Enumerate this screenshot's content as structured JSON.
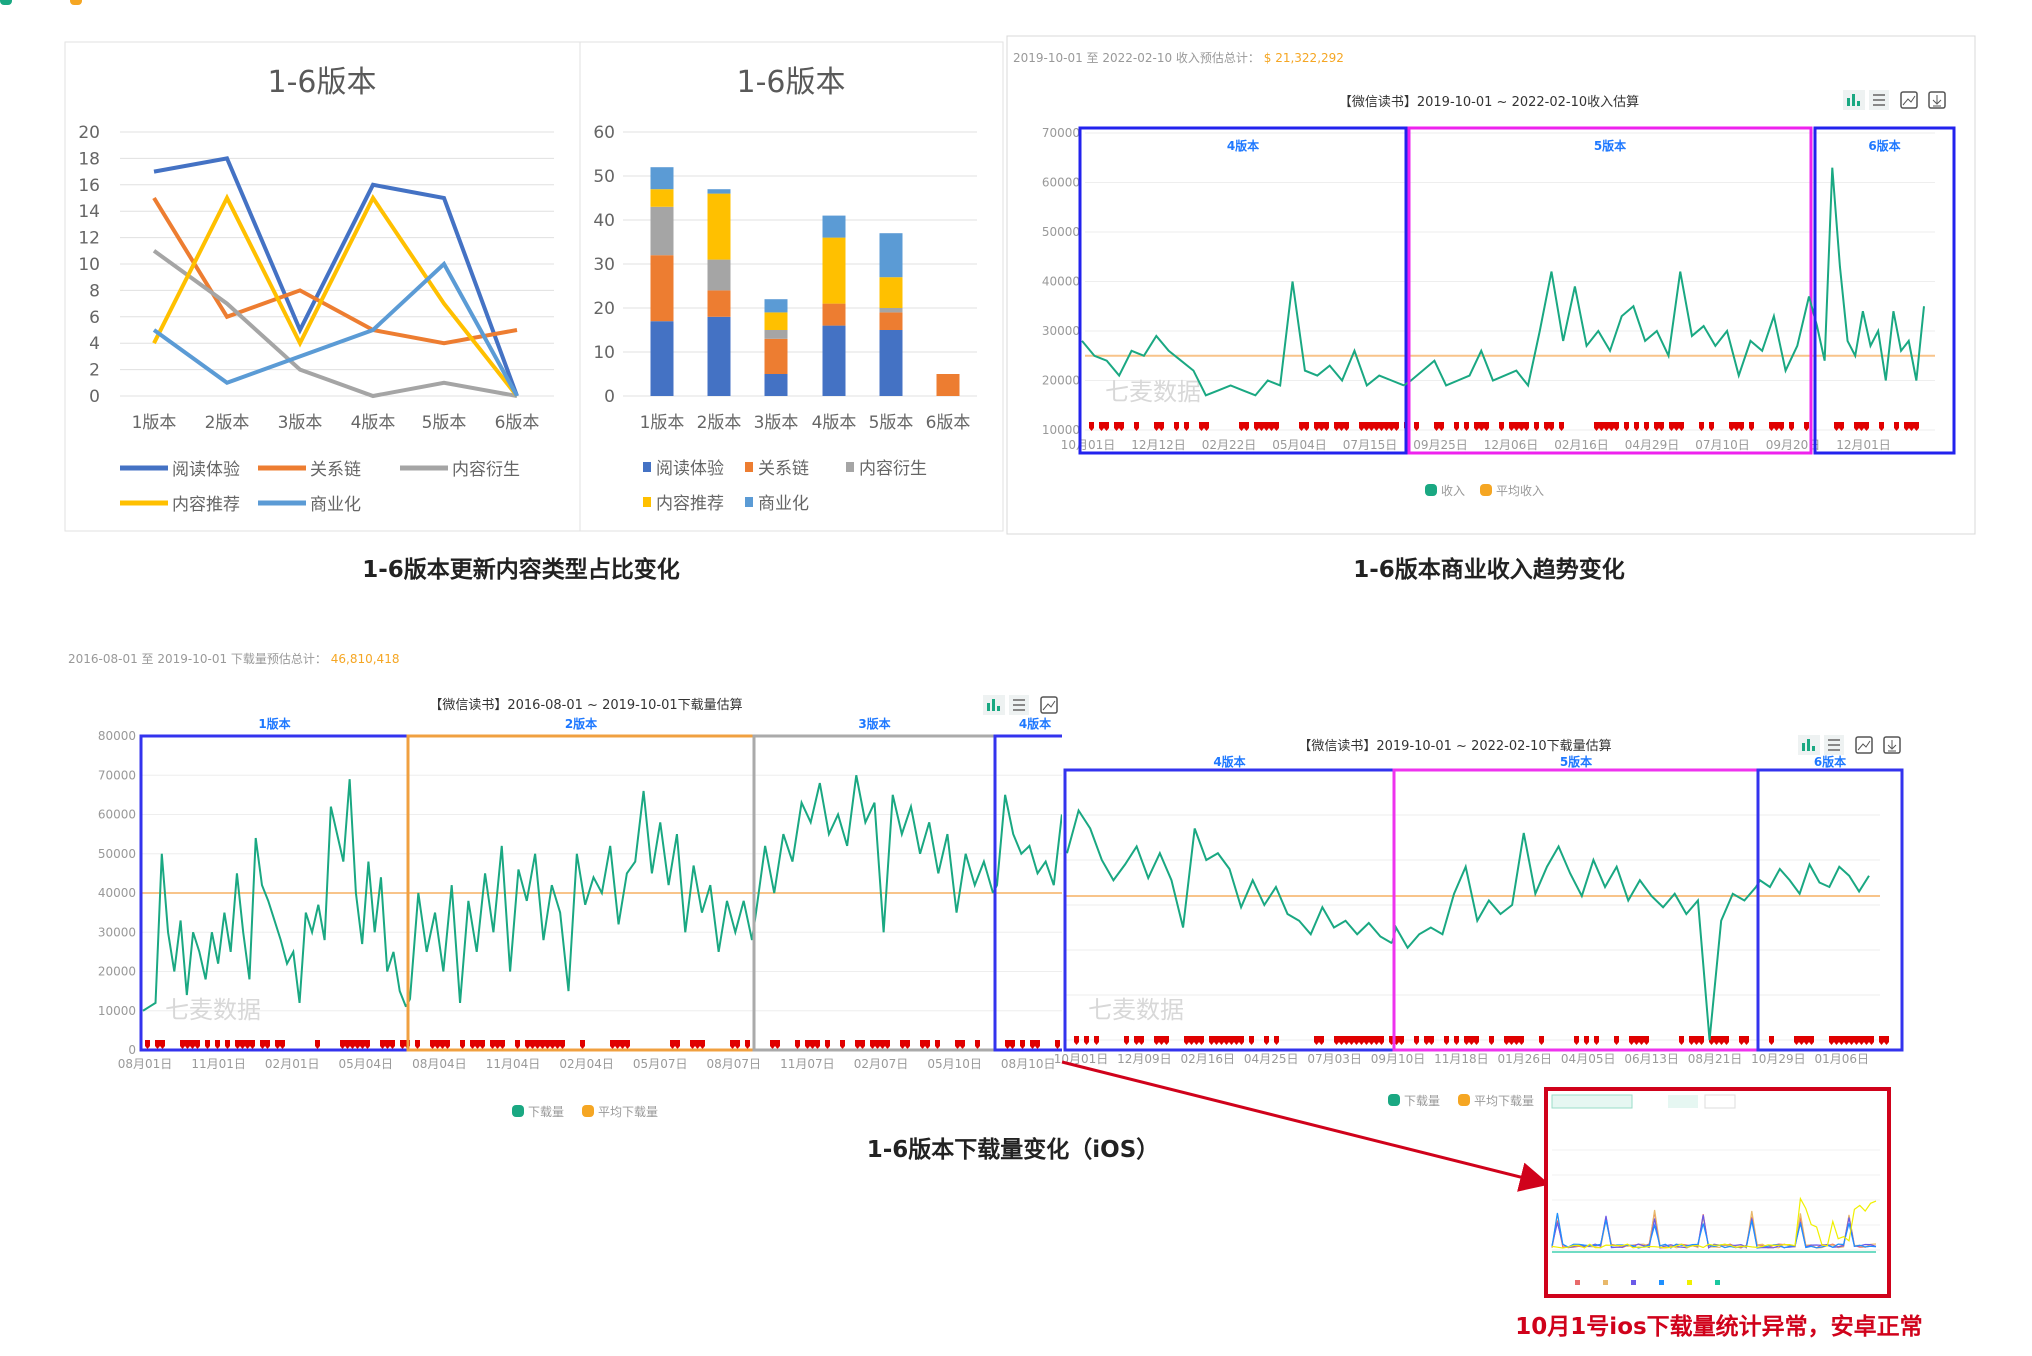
{
  "captions": {
    "content_types": "1-6版本更新内容类型占比变化",
    "revenue": "1-6版本商业收入趋势变化",
    "downloads": "1-6版本下载量变化（iOS）",
    "anomaly_note": "10月1号ios下载量统计异常，安卓正常"
  },
  "watermark": "七麦数据",
  "colors": {
    "line": "#1aa882",
    "average": "#f8c48a",
    "marker": "#e00000",
    "accent_text": "#f5a623",
    "arrow": "#d0021b"
  },
  "revenue_panel": {
    "summary_label": "2019-10-01 至 2022-02-10 收入预估总计：",
    "summary_value": "$ 21,322,292",
    "toolbar_icons": [
      "bar-chart-icon",
      "list-icon",
      "save-image-icon",
      "download-icon"
    ]
  },
  "download_panel_1": {
    "summary_label": "2016-08-01 至 2019-10-01 下载量预估总计：",
    "summary_value": "46,810,418",
    "toolbar_icons": [
      "bar-chart-icon",
      "list-icon",
      "save-image-icon"
    ]
  },
  "download_panel_2": {
    "toolbar_icons": [
      "bar-chart-icon",
      "list-icon",
      "save-image-icon",
      "download-icon"
    ]
  },
  "inset": {
    "series_colors": [
      "#e86a6a",
      "#e8b86a",
      "#6a5ae8",
      "#1e90ff",
      "#f0f000",
      "#1ac8a0"
    ]
  },
  "chart_data": [
    {
      "type": "line",
      "title": "1-6版本",
      "categories": [
        "1版本",
        "2版本",
        "3版本",
        "4版本",
        "5版本",
        "6版本"
      ],
      "ylim": [
        0,
        20
      ],
      "yticks": [
        "0",
        "2",
        "4",
        "6",
        "8",
        "10",
        "12",
        "14",
        "16",
        "18",
        "20"
      ],
      "grid": true,
      "legend": "bottom",
      "series": [
        {
          "name": "阅读体验",
          "color": "#4472c4",
          "values": [
            17,
            18,
            5,
            16,
            15,
            0
          ]
        },
        {
          "name": "关系链",
          "color": "#ed7d31",
          "values": [
            15,
            6,
            8,
            5,
            4,
            5
          ]
        },
        {
          "name": "内容衍生",
          "color": "#a5a5a5",
          "values": [
            11,
            7,
            2,
            0,
            1,
            0
          ]
        },
        {
          "name": "内容推荐",
          "color": "#ffc000",
          "values": [
            4,
            15,
            4,
            15,
            7,
            0
          ]
        },
        {
          "name": "商业化",
          "color": "#5b9bd5",
          "values": [
            5,
            1,
            3,
            5,
            10,
            0
          ]
        }
      ]
    },
    {
      "type": "bar",
      "stacked": true,
      "title": "1-6版本",
      "categories": [
        "1版本",
        "2版本",
        "3版本",
        "4版本",
        "5版本",
        "6版本"
      ],
      "ylim": [
        0,
        60
      ],
      "yticks": [
        "0",
        "10",
        "20",
        "30",
        "40",
        "50",
        "60"
      ],
      "grid": true,
      "legend": "bottom",
      "series": [
        {
          "name": "阅读体验",
          "color": "#4472c4",
          "values": [
            17,
            18,
            5,
            16,
            15,
            0
          ]
        },
        {
          "name": "关系链",
          "color": "#ed7d31",
          "values": [
            15,
            6,
            8,
            5,
            4,
            5
          ]
        },
        {
          "name": "内容衍生",
          "color": "#a5a5a5",
          "values": [
            11,
            7,
            2,
            0,
            1,
            0
          ]
        },
        {
          "name": "内容推荐",
          "color": "#ffc000",
          "values": [
            4,
            15,
            4,
            15,
            7,
            0
          ]
        },
        {
          "name": "商业化",
          "color": "#5b9bd5",
          "values": [
            5,
            1,
            3,
            5,
            10,
            0
          ]
        }
      ]
    },
    {
      "type": "line",
      "title": "【微信读书】2019-10-01 ~ 2022-02-10收入估算",
      "ylim": [
        10000,
        70000
      ],
      "yticks": [
        "10000",
        "20000",
        "30000",
        "40000",
        "50000",
        "60000",
        "70000"
      ],
      "xticks": [
        "10月01日",
        "12月12日",
        "02月22日",
        "05月04日",
        "07月15日",
        "09月25日",
        "12月06日",
        "02月16日",
        "04月29日",
        "07月10日",
        "09月20日",
        "12月01日"
      ],
      "legend": [
        "收入",
        "平均收入"
      ],
      "average": 25000,
      "segments": [
        {
          "version": "4版本",
          "color": "#2222ee",
          "values": [
            28000,
            25000,
            24000,
            21000,
            26000,
            25000,
            29000,
            26000,
            24000,
            22000,
            17000,
            18000,
            19000,
            18000,
            17000,
            20000,
            19000,
            40000,
            22000,
            21000,
            23000,
            20000,
            26000,
            19000,
            21000,
            20000,
            19000
          ]
        },
        {
          "version": "5版本",
          "color": "#ee22ee",
          "values": [
            20000,
            22000,
            24000,
            19000,
            20000,
            21000,
            26000,
            20000,
            21000,
            22000,
            19000,
            30000,
            42000,
            28000,
            39000,
            27000,
            30000,
            26000,
            33000,
            35000,
            28000,
            30000,
            25000,
            42000,
            29000,
            31000,
            27000,
            30000,
            21000,
            28000,
            26000,
            33000,
            22000,
            27000,
            37000
          ]
        },
        {
          "version": "6版本",
          "color": "#2222ee",
          "values": [
            31000,
            24000,
            63000,
            43000,
            28000,
            25000,
            34000,
            27000,
            30000,
            20000,
            34000,
            26000,
            28000,
            20000,
            35000
          ]
        }
      ]
    },
    {
      "type": "line",
      "title": "【微信读书】2016-08-01 ~ 2019-10-01下载量估算",
      "ylim": [
        0,
        80000
      ],
      "yticks": [
        "0",
        "10000",
        "20000",
        "30000",
        "40000",
        "50000",
        "60000",
        "70000",
        "80000"
      ],
      "xticks": [
        "08月01日",
        "11月01日",
        "02月01日",
        "05月04日",
        "08月04日",
        "11月04日",
        "02月04日",
        "05月07日",
        "08月07日",
        "11月07日",
        "02月07日",
        "05月10日",
        "08月10日"
      ],
      "legend": [
        "下载量",
        "平均下载量"
      ],
      "average": 40000,
      "segments": [
        {
          "version": "1版本",
          "color": "#3333ee",
          "values": [
            10000,
            11000,
            12000,
            50000,
            30000,
            20000,
            33000,
            14000,
            30000,
            25000,
            18000,
            30000,
            22000,
            35000,
            25000,
            45000,
            30000,
            18000,
            54000,
            42000,
            38000,
            33000,
            28000,
            22000,
            25000,
            12000,
            35000,
            30000,
            37000,
            28000,
            62000,
            55000,
            48000,
            69000,
            40000,
            27000,
            48000,
            30000,
            44000,
            20000,
            25000,
            15000,
            11000
          ]
        },
        {
          "version": "2版本",
          "color": "#f0a040",
          "values": [
            13000,
            40000,
            25000,
            35000,
            20000,
            42000,
            12000,
            38000,
            25000,
            45000,
            30000,
            52000,
            20000,
            46000,
            38000,
            50000,
            28000,
            42000,
            35000,
            15000,
            50000,
            37000,
            44000,
            40000,
            52000,
            32000,
            45000,
            48000,
            66000,
            45000,
            58000,
            42000,
            55000,
            30000,
            47000,
            35000,
            42000,
            25000,
            38000,
            30000,
            38000,
            28000
          ]
        },
        {
          "version": "3版本",
          "color": "#aaaaaa",
          "values": [
            35000,
            52000,
            40000,
            55000,
            48000,
            63000,
            58000,
            68000,
            55000,
            60000,
            52000,
            70000,
            58000,
            63000,
            30000,
            65000,
            55000,
            62000,
            50000,
            58000,
            45000,
            55000,
            35000,
            50000,
            42000,
            48000,
            40000
          ]
        },
        {
          "version": "4版本",
          "color": "#3333ee",
          "values": [
            42000,
            65000,
            55000,
            50000,
            52000,
            45000,
            48000,
            42000,
            60000,
            45000
          ]
        }
      ]
    },
    {
      "type": "line",
      "title": "【微信读书】2019-10-01 ~ 2022-02-10下载量估算",
      "ylim": [
        0,
        60000
      ],
      "xticks": [
        "10月01日",
        "12月09日",
        "02月16日",
        "04月25日",
        "07月03日",
        "09月10日",
        "11月18日",
        "01月26日",
        "04月05日",
        "06月13日",
        "08月21日",
        "10月29日",
        "01月06日"
      ],
      "legend": [
        "下载量",
        "平均下载量"
      ],
      "average": 32000,
      "segments": [
        {
          "version": "4版本",
          "color": "#3333ee",
          "values": [
            41500,
            51000,
            47000,
            40000,
            35500,
            39000,
            43000,
            36000,
            41500,
            35500,
            25000,
            47000,
            40000,
            41500,
            38000,
            29500,
            35500,
            30000,
            34000,
            28000,
            26500,
            23500,
            29500,
            25000,
            26500,
            23500,
            26000,
            23000,
            21500
          ]
        },
        {
          "version": "5版本",
          "color": "#ee33ee",
          "values": [
            25000,
            20500,
            23500,
            25000,
            23500,
            32500,
            38500,
            26500,
            31000,
            28000,
            30000,
            46000,
            32500,
            38500,
            43000,
            37000,
            32000,
            40000,
            34000,
            38500,
            31000,
            35500,
            32000,
            29500,
            32500,
            28000,
            31000,
            0,
            26500,
            32500,
            31000,
            34000
          ]
        },
        {
          "version": "6版本",
          "color": "#3333ee",
          "values": [
            35500,
            34000,
            38000,
            35500,
            32500,
            39000,
            35000,
            34000,
            38500,
            36500,
            33000,
            36500
          ]
        }
      ]
    }
  ]
}
